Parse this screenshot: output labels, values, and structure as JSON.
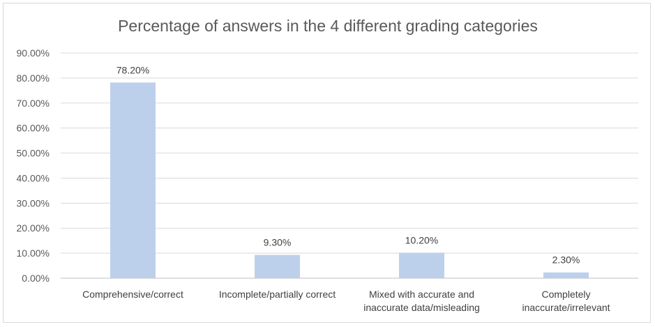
{
  "chart_data": {
    "type": "bar",
    "title": "Percentage of answers in the 4 different grading categories",
    "categories": [
      [
        "Comprehensive/correct"
      ],
      [
        "Incomplete/partially correct"
      ],
      [
        "Mixed with accurate and",
        "inaccurate data/misleading"
      ],
      [
        "Completely",
        "inaccurate/irrelevant"
      ]
    ],
    "values": [
      78.2,
      9.3,
      10.2,
      2.3
    ],
    "data_labels": [
      "78.20%",
      "9.30%",
      "10.20%",
      "2.30%"
    ],
    "ylim": [
      0,
      90
    ],
    "yticks": [
      "0.00%",
      "10.00%",
      "20.00%",
      "30.00%",
      "40.00%",
      "50.00%",
      "60.00%",
      "70.00%",
      "80.00%",
      "90.00%"
    ],
    "ytick_values": [
      0,
      10,
      20,
      30,
      40,
      50,
      60,
      70,
      80,
      90
    ],
    "grid": true,
    "legend": "none",
    "colors": {
      "bar": "#bdd0eb",
      "grid": "#d9d9d9",
      "text": "#595959"
    }
  }
}
